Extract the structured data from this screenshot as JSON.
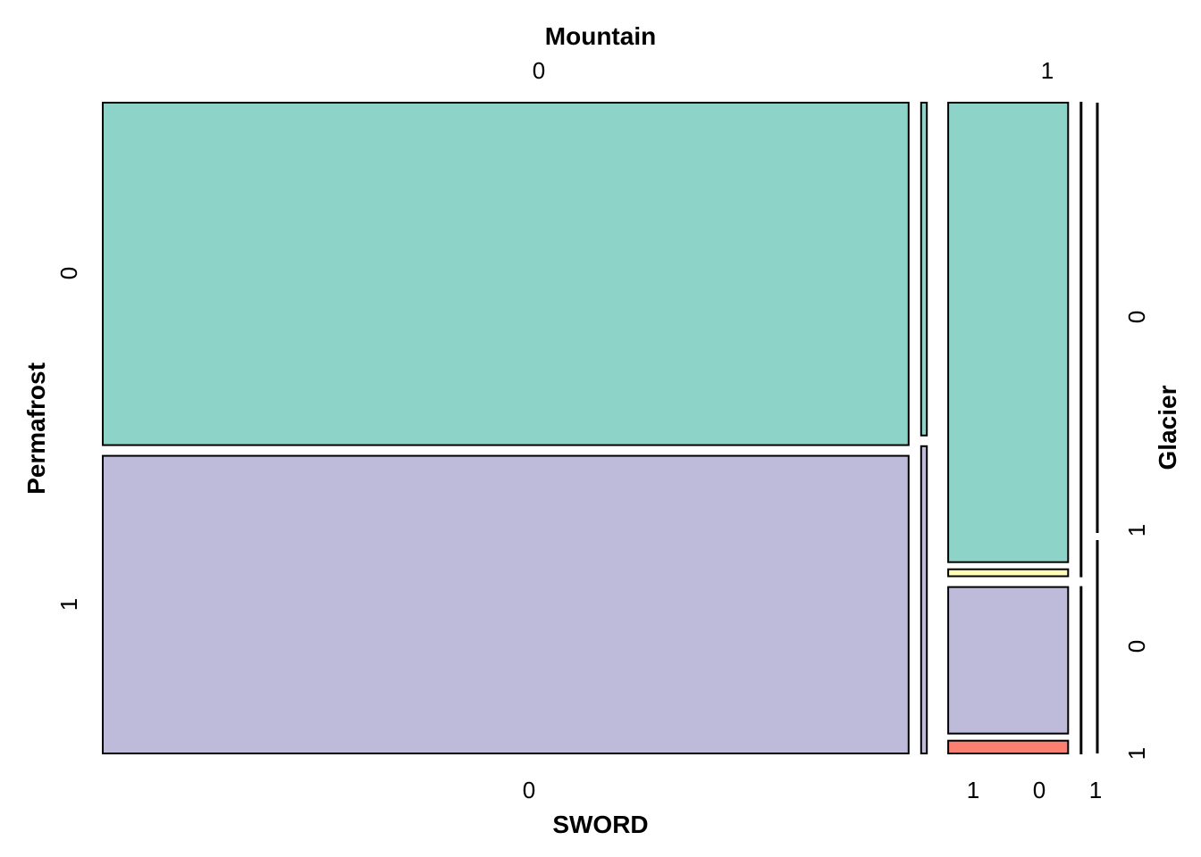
{
  "chart_data": {
    "type": "mosaic",
    "variables": {
      "top": "Mountain",
      "bottom": "SWORD",
      "left": "Permafrost",
      "right": "Glacier"
    },
    "levels": {
      "Mountain": [
        "0",
        "1"
      ],
      "SWORD": [
        "0",
        "1"
      ],
      "Permafrost": [
        "0",
        "1"
      ],
      "Glacier": [
        "0",
        "1"
      ]
    },
    "colors": {
      "Permafrost0_Glacier0": "#8DD3C7",
      "Permafrost0_Glacier1": "#FFFFB3",
      "Permafrost1_Glacier0": "#BEBADA",
      "Permafrost1_Glacier1": "#FB8072"
    },
    "proportions": {
      "Mountain": {
        "0": 0.861,
        "1": 0.139
      },
      "SWORD_given_Mountain": {
        "0": {
          "0": 0.993,
          "1": 0.007
        },
        "1": {
          "0": 0.995,
          "1": 0.005
        }
      },
      "Permafrost_given_Mountain_SWORD": {
        "0": {
          "0": {
            "0": 0.535,
            "1": 0.465
          },
          "1": {
            "0": 0.52,
            "1": 0.48
          }
        },
        "1": {
          "0": {
            "0": 0.74,
            "1": 0.26
          },
          "1": {
            "0": 0.74,
            "1": 0.26
          }
        }
      },
      "Glacier_given_Mountain_SWORD_Permafrost": {
        "1": {
          "0": {
            "0": {
              "0": 0.985,
              "1": 0.015
            },
            "1": {
              "0": 0.92,
              "1": 0.08
            }
          }
        }
      }
    }
  }
}
